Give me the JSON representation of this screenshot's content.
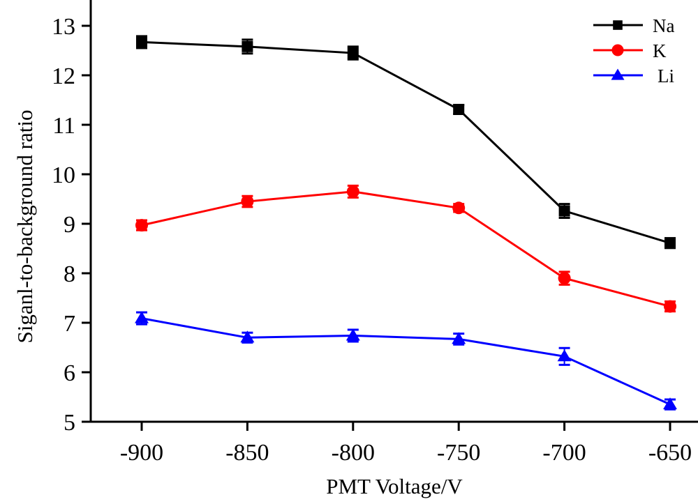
{
  "chart_data": {
    "type": "line",
    "title": "",
    "xlabel": "PMT Voltage/V",
    "ylabel": "Siganl-to-background ratio",
    "x": [
      -900,
      -850,
      -800,
      -750,
      -700,
      -650
    ],
    "xlim": [
      -925,
      -615
    ],
    "ylim": [
      5,
      13.4
    ],
    "xticks": [
      -900,
      -850,
      -800,
      -750,
      -700,
      -650
    ],
    "xtick_labels": [
      "-900",
      "-850",
      "-800",
      "-750",
      "-700",
      "-650"
    ],
    "yticks": [
      5,
      6,
      7,
      8,
      9,
      10,
      11,
      12,
      13
    ],
    "ytick_labels": [
      "5",
      "6",
      "7",
      "8",
      "9",
      "10",
      "11",
      "12",
      "13"
    ],
    "grid": false,
    "legend_position": "top-right",
    "series": [
      {
        "name": "Na",
        "color": "#000000",
        "marker": "square",
        "values": [
          12.67,
          12.58,
          12.45,
          11.31,
          9.26,
          8.61
        ],
        "errors": [
          0.12,
          0.14,
          0.13,
          0.09,
          0.14,
          0.1
        ]
      },
      {
        "name": "K",
        "color": "#ff0000",
        "marker": "circle",
        "values": [
          8.97,
          9.45,
          9.65,
          9.32,
          7.9,
          7.33
        ],
        "errors": [
          0.1,
          0.11,
          0.12,
          0.08,
          0.13,
          0.1
        ]
      },
      {
        "name": "Li",
        "color": "#0000ff",
        "marker": "triangle",
        "values": [
          7.09,
          6.7,
          6.74,
          6.67,
          6.32,
          5.35
        ],
        "errors": [
          0.12,
          0.1,
          0.12,
          0.11,
          0.17,
          0.1
        ]
      }
    ]
  }
}
